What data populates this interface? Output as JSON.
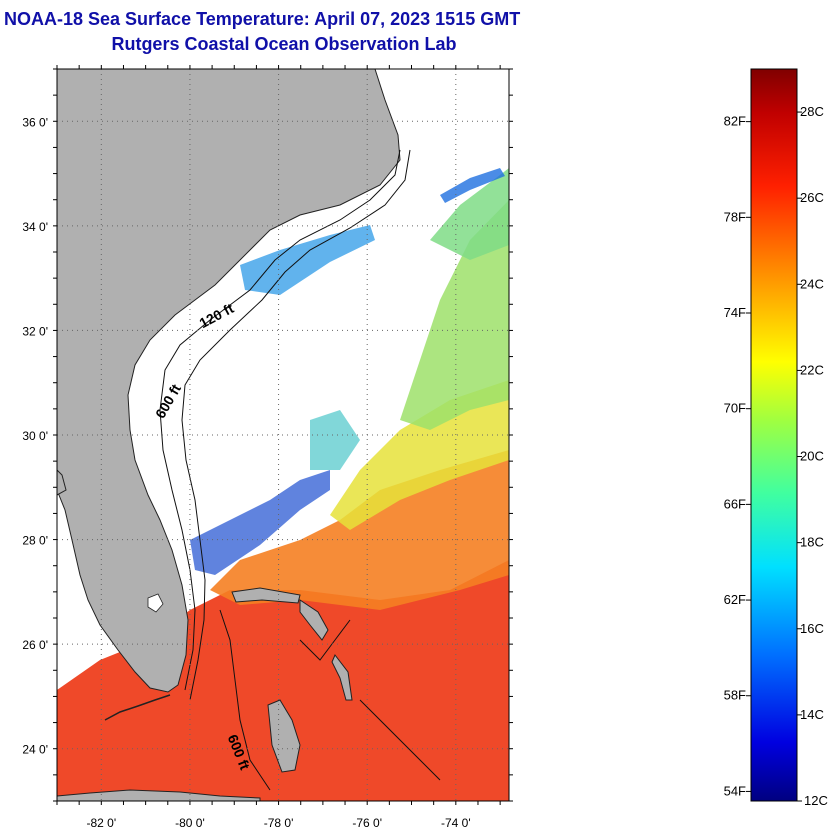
{
  "title_line1": "NOAA-18 Sea Surface Temperature:  April 07, 2023 1515 GMT",
  "title_line2": "Rutgers Coastal Ocean Observation Lab",
  "map": {
    "lon_range": [
      -83.0,
      -72.8
    ],
    "lat_range": [
      23.0,
      37.0
    ],
    "lat_ticks": [
      {
        "value": 36,
        "label": "36 0'"
      },
      {
        "value": 34,
        "label": "34 0'"
      },
      {
        "value": 32,
        "label": "32 0'"
      },
      {
        "value": 30,
        "label": "30 0'"
      },
      {
        "value": 28,
        "label": "28 0'"
      },
      {
        "value": 26,
        "label": "26 0'"
      },
      {
        "value": 24,
        "label": "24 0'"
      }
    ],
    "lon_ticks": [
      {
        "value": -82,
        "label": "-82 0'"
      },
      {
        "value": -80,
        "label": "-80 0'"
      },
      {
        "value": -78,
        "label": "-78 0'"
      },
      {
        "value": -76,
        "label": "-76 0'"
      },
      {
        "value": -74,
        "label": "-74 0'"
      }
    ],
    "contour_labels": [
      {
        "text": "120 ft",
        "lon": -79.35,
        "lat": 32.2
      },
      {
        "text": "600 ft",
        "lon": -80.4,
        "lat": 30.6
      },
      {
        "text": "600 ft",
        "lon": -79.0,
        "lat": 23.9
      }
    ],
    "colors": {
      "land": "#b0b0b0",
      "no_data": "#ffffff",
      "grid": "#666666"
    }
  },
  "colorbar": {
    "range_c": [
      12,
      29
    ],
    "celsius_labels": [
      {
        "value": 28,
        "label": "28C"
      },
      {
        "value": 26,
        "label": "26C"
      },
      {
        "value": 24,
        "label": "24C"
      },
      {
        "value": 22,
        "label": "22C"
      },
      {
        "value": 20,
        "label": "20C"
      },
      {
        "value": 18,
        "label": "18C"
      },
      {
        "value": 16,
        "label": "16C"
      },
      {
        "value": 14,
        "label": "14C"
      },
      {
        "value": 12,
        "label": "12C"
      }
    ],
    "fahrenheit_labels": [
      {
        "value": 82,
        "label": "82F"
      },
      {
        "value": 78,
        "label": "78F"
      },
      {
        "value": 74,
        "label": "74F"
      },
      {
        "value": 70,
        "label": "70F"
      },
      {
        "value": 66,
        "label": "66F"
      },
      {
        "value": 62,
        "label": "62F"
      },
      {
        "value": 58,
        "label": "58F"
      },
      {
        "value": 54,
        "label": "54F"
      }
    ]
  }
}
